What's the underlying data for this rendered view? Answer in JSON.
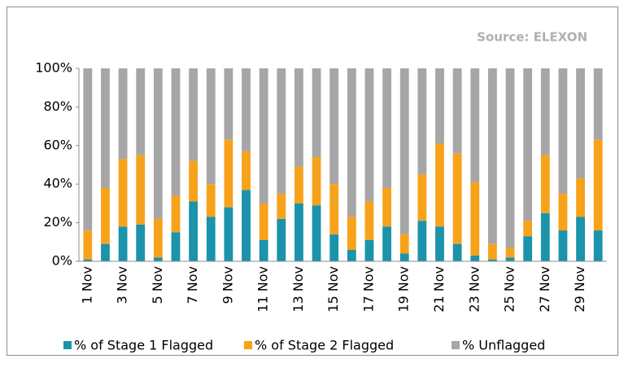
{
  "chart_data": {
    "type": "stacked-bar",
    "source": "Source: ELEXON",
    "categories": [
      "1 Nov",
      null,
      "3 Nov",
      null,
      "5 Nov",
      null,
      "7 Nov",
      null,
      "9 Nov",
      null,
      "11 Nov",
      null,
      "13 Nov",
      null,
      "15 Nov",
      null,
      "17 Nov",
      null,
      "19 Nov",
      null,
      "21 Nov",
      null,
      "23 Nov",
      null,
      "25 Nov",
      null,
      "27 Nov",
      null,
      "29 Nov",
      null
    ],
    "series": [
      {
        "name": "% of Stage 1 Flagged",
        "color": "#1a93ab",
        "values": [
          1,
          9,
          18,
          19,
          2,
          15,
          31,
          23,
          28,
          37,
          11,
          22,
          30,
          29,
          14,
          6,
          11,
          18,
          4,
          21,
          18,
          9,
          3,
          1,
          2,
          13,
          25,
          16,
          23,
          16
        ]
      },
      {
        "name": "% of Stage 2 Flagged",
        "color": "#f7a21b",
        "values": [
          15,
          29,
          35,
          36,
          20,
          19,
          21,
          17,
          35,
          20,
          19,
          13,
          19,
          25,
          26,
          17,
          20,
          20,
          10,
          24,
          43,
          47,
          38,
          8,
          5,
          8,
          30,
          19,
          20,
          47
        ]
      },
      {
        "name": "% Unflagged",
        "color": "#a6a6a6",
        "values": [
          84,
          62,
          47,
          45,
          78,
          66,
          48,
          60,
          37,
          43,
          70,
          65,
          51,
          46,
          60,
          77,
          69,
          62,
          86,
          55,
          39,
          44,
          59,
          91,
          93,
          79,
          45,
          65,
          57,
          37
        ]
      }
    ],
    "ylim": [
      0,
      100
    ],
    "yticks": [
      {
        "value": 0,
        "label": "0%"
      },
      {
        "value": 20,
        "label": "20%"
      },
      {
        "value": 40,
        "label": "40%"
      },
      {
        "value": 60,
        "label": "60%"
      },
      {
        "value": 80,
        "label": "80%"
      },
      {
        "value": 100,
        "label": "100%"
      }
    ]
  }
}
